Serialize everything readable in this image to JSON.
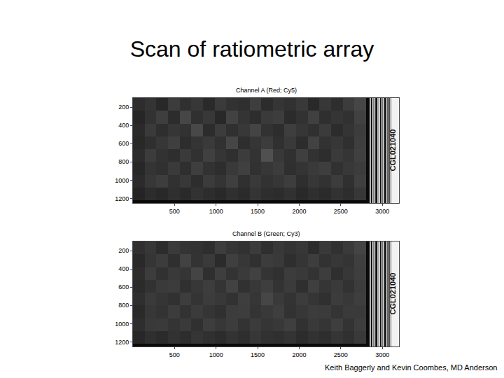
{
  "header": {
    "title": "Scan of ratiometric array"
  },
  "footer": "Keith Baggerly and Kevin Coombes, MD Anderson",
  "chart_data": [
    {
      "type": "heatmap",
      "title": "Channel A (Red; Cy5)",
      "annotations": [
        "CGL021040"
      ],
      "x": [
        70,
        210,
        350,
        490,
        630,
        770,
        910,
        1050,
        1190,
        1330,
        1470,
        1610,
        1750,
        1890,
        2030,
        2170,
        2310,
        2450,
        2590,
        2730
      ],
      "y": [
        170,
        310,
        450,
        590,
        730,
        870,
        1010,
        1150
      ],
      "cells": [
        [
          45,
          52,
          40,
          60,
          48,
          55,
          42,
          58,
          50,
          47,
          62,
          44,
          53,
          49,
          57,
          41,
          55,
          46,
          60,
          70
        ],
        [
          38,
          50,
          62,
          44,
          70,
          48,
          56,
          40,
          66,
          52,
          45,
          58,
          61,
          43,
          50,
          64,
          47,
          53,
          49,
          65
        ],
        [
          42,
          58,
          46,
          54,
          50,
          72,
          44,
          60,
          48,
          56,
          68,
          50,
          45,
          62,
          54,
          48,
          59,
          44,
          52,
          60
        ],
        [
          40,
          47,
          55,
          63,
          45,
          52,
          58,
          49,
          70,
          46,
          53,
          60,
          48,
          57,
          44,
          66,
          50,
          55,
          47,
          62
        ],
        [
          44,
          60,
          50,
          46,
          58,
          49,
          64,
          53,
          47,
          60,
          51,
          80,
          56,
          48,
          63,
          50,
          45,
          58,
          53,
          64
        ],
        [
          39,
          52,
          48,
          58,
          47,
          62,
          50,
          45,
          57,
          64,
          49,
          55,
          60,
          47,
          52,
          58,
          62,
          49,
          56,
          60
        ],
        [
          43,
          55,
          61,
          49,
          56,
          45,
          59,
          52,
          63,
          48,
          57,
          50,
          54,
          61,
          46,
          55,
          50,
          60,
          48,
          63
        ],
        [
          36,
          44,
          40,
          47,
          42,
          50,
          45,
          41,
          48,
          43,
          52,
          46,
          44,
          49,
          41,
          47,
          43,
          50,
          45,
          55
        ]
      ],
      "zlim": [
        0,
        255
      ],
      "xlim": [
        0,
        3200
      ],
      "ylim": [
        1250,
        100
      ],
      "xticks": [
        500,
        1000,
        1500,
        2000,
        2500,
        3000
      ],
      "yticks": [
        200,
        400,
        600,
        800,
        1000,
        1200
      ]
    },
    {
      "type": "heatmap",
      "title": "Channel B (Green; Cy3)",
      "annotations": [
        "CGL021040"
      ],
      "x": [
        70,
        210,
        350,
        490,
        630,
        770,
        910,
        1050,
        1190,
        1330,
        1470,
        1610,
        1750,
        1890,
        2030,
        2170,
        2310,
        2450,
        2590,
        2730
      ],
      "y": [
        170,
        310,
        450,
        590,
        730,
        870,
        1010,
        1150
      ],
      "cells": [
        [
          48,
          55,
          44,
          58,
          52,
          50,
          46,
          61,
          53,
          49,
          59,
          47,
          56,
          51,
          55,
          44,
          57,
          49,
          58,
          68
        ],
        [
          41,
          53,
          60,
          47,
          66,
          51,
          58,
          43,
          63,
          55,
          48,
          60,
          57,
          46,
          53,
          61,
          50,
          55,
          52,
          63
        ],
        [
          45,
          60,
          49,
          57,
          53,
          68,
          47,
          62,
          51,
          58,
          65,
          52,
          48,
          60,
          57,
          51,
          61,
          47,
          55,
          62
        ],
        [
          43,
          50,
          58,
          60,
          48,
          55,
          61,
          52,
          66,
          49,
          56,
          62,
          51,
          59,
          47,
          63,
          53,
          58,
          50,
          60
        ],
        [
          47,
          58,
          53,
          49,
          61,
          52,
          60,
          56,
          50,
          62,
          54,
          70,
          58,
          51,
          60,
          53,
          48,
          60,
          56,
          62
        ],
        [
          42,
          55,
          51,
          60,
          50,
          59,
          53,
          48,
          60,
          61,
          52,
          57,
          62,
          50,
          55,
          60,
          59,
          52,
          58,
          58
        ],
        [
          46,
          57,
          58,
          52,
          58,
          48,
          61,
          55,
          60,
          51,
          59,
          53,
          56,
          63,
          49,
          57,
          53,
          62,
          51,
          61
        ],
        [
          39,
          47,
          43,
          50,
          45,
          53,
          48,
          44,
          51,
          46,
          55,
          49,
          47,
          52,
          44,
          50,
          46,
          53,
          48,
          57
        ]
      ],
      "zlim": [
        0,
        255
      ],
      "xlim": [
        0,
        3200
      ],
      "ylim": [
        1250,
        100
      ],
      "xticks": [
        500,
        1000,
        1500,
        2000,
        2500,
        3000
      ],
      "yticks": [
        200,
        400,
        600,
        800,
        1000,
        1200
      ]
    }
  ]
}
